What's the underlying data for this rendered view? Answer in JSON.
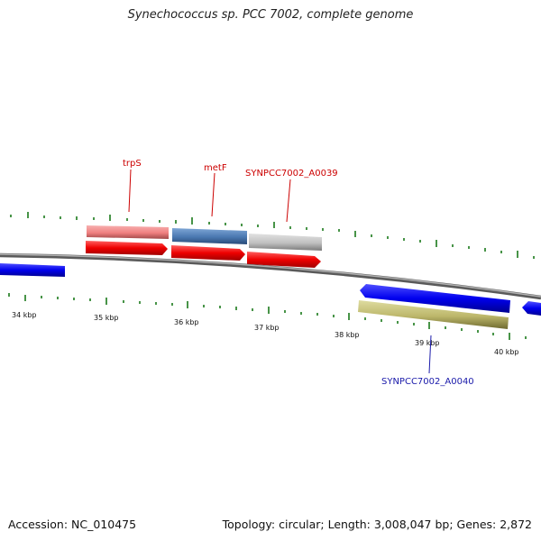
{
  "title": "Synechococcus sp. PCC 7002, complete genome",
  "footer": {
    "accession": "Accession: NC_010475",
    "summary": "Topology: circular; Length: 3,008,047 bp; Genes: 2,872"
  },
  "scale": {
    "tick_labels": [
      "34 kbp",
      "35 kbp",
      "36 kbp",
      "37 kbp",
      "38 kbp",
      "39 kbp",
      "40 kbp"
    ]
  },
  "genes": {
    "labeled": [
      {
        "name": "trpS",
        "color": "#cc0000"
      },
      {
        "name": "metF",
        "color": "#cc0000"
      },
      {
        "name": "SYNPCC7002_A0039",
        "color": "#cc0000"
      },
      {
        "name": "SYNPCC7002_A0040",
        "color": "#1a1aaa"
      }
    ]
  },
  "colors": {
    "forward_cds": "#ee0000",
    "reverse_cds": "#0000ee",
    "trpS_feature": "#f08080",
    "metF_feature": "#4a78b0",
    "a0039_feature": "#c0c0c0",
    "a0040_feature": "#bdb76b",
    "backbone": "#808080",
    "gc_ticks": "#1a7a1a"
  }
}
